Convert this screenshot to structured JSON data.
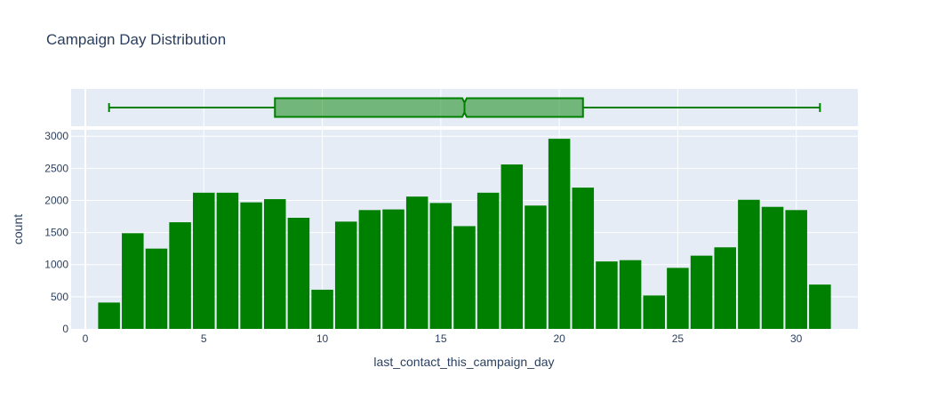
{
  "chart_data": {
    "type": "bar",
    "title": "Campaign Day Distribution",
    "xlabel": "last_contact_this_campaign_day",
    "ylabel": "count",
    "xlim": [
      -0.6,
      32.6
    ],
    "ylim": [
      0,
      3100
    ],
    "x_ticks": [
      0,
      5,
      10,
      15,
      20,
      25,
      30
    ],
    "y_ticks": [
      0,
      500,
      1000,
      1500,
      2000,
      2500,
      3000
    ],
    "bar_color": "#008000",
    "grid": true,
    "plot_background": "#e5ecf6",
    "bins": [
      {
        "x": 1,
        "count": 410
      },
      {
        "x": 2,
        "count": 1490
      },
      {
        "x": 3,
        "count": 1250
      },
      {
        "x": 4,
        "count": 1660
      },
      {
        "x": 5,
        "count": 2120
      },
      {
        "x": 6,
        "count": 2120
      },
      {
        "x": 7,
        "count": 1970
      },
      {
        "x": 8,
        "count": 2020
      },
      {
        "x": 9,
        "count": 1730
      },
      {
        "x": 10,
        "count": 610
      },
      {
        "x": 11,
        "count": 1670
      },
      {
        "x": 12,
        "count": 1850
      },
      {
        "x": 13,
        "count": 1860
      },
      {
        "x": 14,
        "count": 2060
      },
      {
        "x": 15,
        "count": 1960
      },
      {
        "x": 16,
        "count": 1600
      },
      {
        "x": 17,
        "count": 2120
      },
      {
        "x": 18,
        "count": 2560
      },
      {
        "x": 19,
        "count": 1920
      },
      {
        "x": 20,
        "count": 2960
      },
      {
        "x": 21,
        "count": 2200
      },
      {
        "x": 22,
        "count": 1050
      },
      {
        "x": 23,
        "count": 1070
      },
      {
        "x": 24,
        "count": 520
      },
      {
        "x": 25,
        "count": 950
      },
      {
        "x": 26,
        "count": 1140
      },
      {
        "x": 27,
        "count": 1270
      },
      {
        "x": 28,
        "count": 2010
      },
      {
        "x": 29,
        "count": 1900
      },
      {
        "x": 30,
        "count": 1850
      },
      {
        "x": 31,
        "count": 690
      }
    ],
    "box": {
      "min": 1,
      "q1": 8,
      "median": 16,
      "q3": 21,
      "max": 31,
      "fill_color": "#008000",
      "line_color": "#008000"
    }
  }
}
